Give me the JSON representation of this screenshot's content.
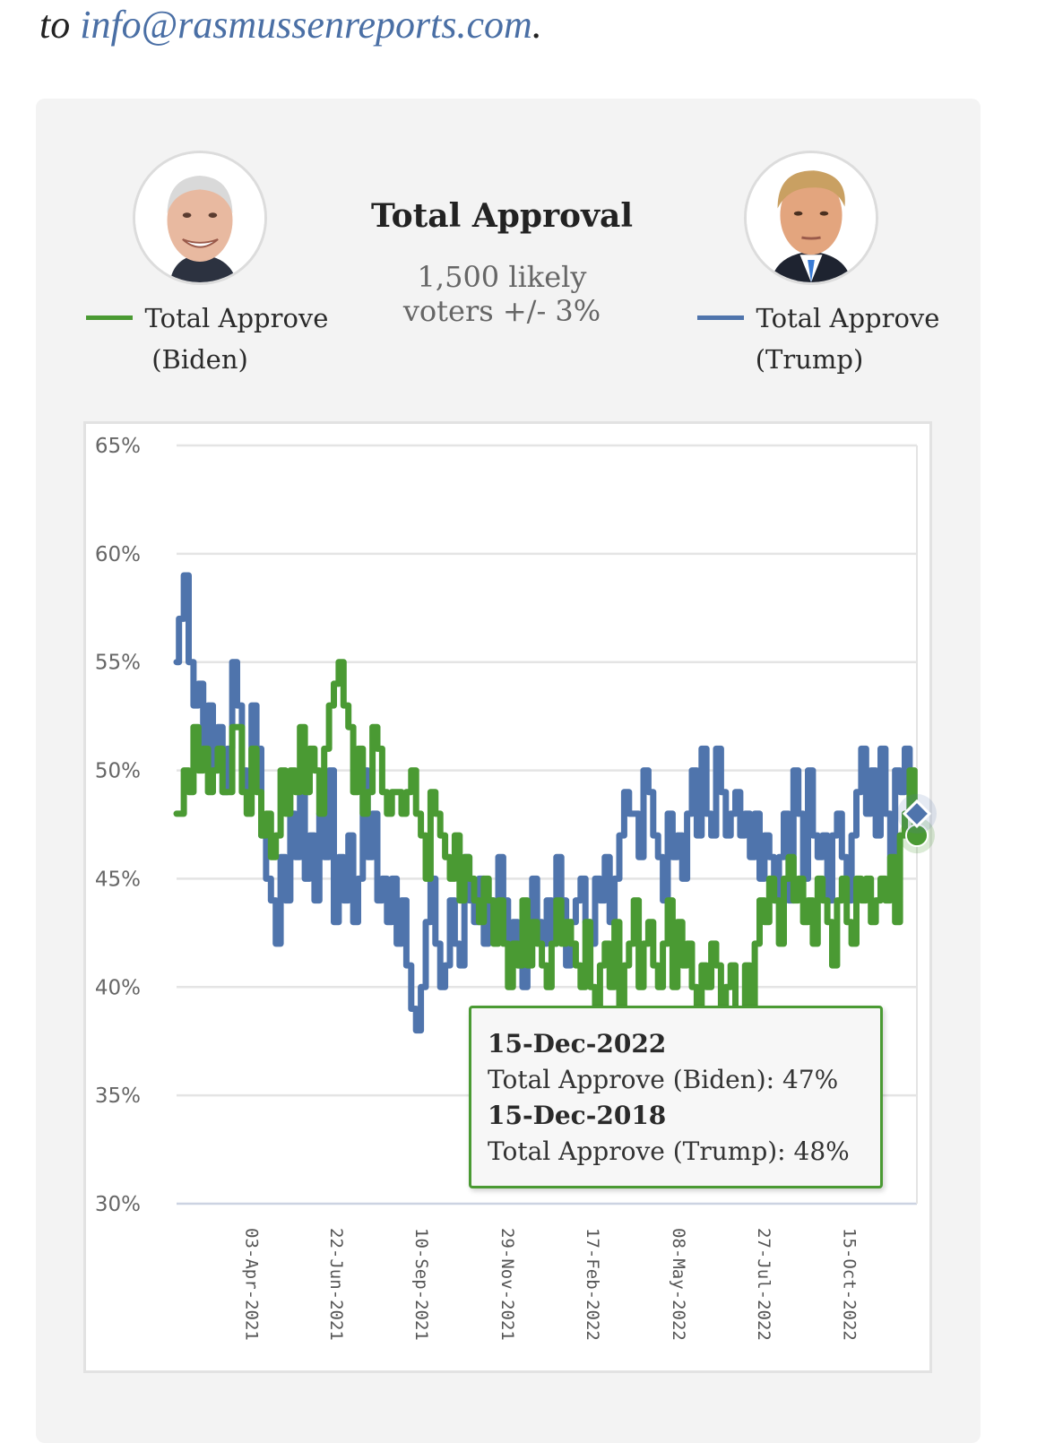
{
  "header": {
    "prefix": "to ",
    "email_link": "info@rasmussenreports.com",
    "suffix": "."
  },
  "chart_header": {
    "title": "Total Approval",
    "subtitle_line1": "1,500 likely",
    "subtitle_line2": "voters +/- 3%"
  },
  "legend": {
    "biden": {
      "line1": "Total Approve",
      "line2": "(Biden)",
      "color": "#4a9a33",
      "avatar": "biden-portrait"
    },
    "trump": {
      "line1": "Total Approve",
      "line2": "(Trump)",
      "color": "#4f74ac",
      "avatar": "trump-portrait"
    }
  },
  "tooltip": {
    "date1": "15-Dec-2022",
    "line1": "Total Approve (Biden): 47%",
    "date2": "15-Dec-2018",
    "line2": "Total Approve (Trump): 48%"
  },
  "chart_data": {
    "type": "line",
    "title": "Total Approval",
    "subtitle": "1,500 likely voters +/- 3%",
    "xlabel": "",
    "ylabel": "",
    "ylim": [
      30,
      65
    ],
    "yticks": [
      "65%",
      "60%",
      "55%",
      "50%",
      "45%",
      "40%",
      "35%",
      "30%"
    ],
    "ytick_values": [
      65,
      60,
      55,
      50,
      45,
      40,
      35,
      30
    ],
    "xticks": [
      "03-Apr-2021",
      "22-Jun-2021",
      "10-Sep-2021",
      "29-Nov-2021",
      "17-Feb-2022",
      "08-May-2022",
      "27-Jul-2022",
      "15-Oct-2022"
    ],
    "xtick_positions": [
      0.102,
      0.217,
      0.332,
      0.448,
      0.563,
      0.679,
      0.794,
      0.91
    ],
    "grid": true,
    "legend": "top",
    "x_range": [
      "22-Jan-2021",
      "15-Dec-2022"
    ],
    "series": [
      {
        "name": "Total Approve (Biden)",
        "color": "#4a9a33",
        "values": [
          48,
          48,
          50,
          49,
          52,
          50,
          51,
          49,
          50,
          51,
          49,
          49,
          52,
          52,
          49,
          48,
          51,
          49,
          47,
          48,
          46,
          47,
          50,
          48,
          50,
          49,
          52,
          49,
          51,
          50,
          48,
          51,
          53,
          54,
          55,
          53,
          52,
          49,
          51,
          48,
          49,
          52,
          51,
          49,
          48,
          49,
          49,
          48,
          49,
          50,
          48,
          47,
          45,
          49,
          48,
          47,
          46,
          45,
          47,
          44,
          46,
          45,
          44,
          43,
          45,
          44,
          42,
          44,
          42,
          40,
          42,
          41,
          44,
          41,
          43,
          42,
          41,
          40,
          42,
          44,
          42,
          43,
          42,
          41,
          40,
          43,
          40,
          38,
          41,
          42,
          40,
          43,
          38,
          41,
          42,
          44,
          40,
          42,
          43,
          41,
          40,
          42,
          44,
          40,
          43,
          41,
          42,
          40,
          39,
          41,
          40,
          42,
          41,
          38,
          40,
          41,
          39,
          37,
          41,
          38,
          42,
          44,
          43,
          45,
          44,
          42,
          45,
          46,
          44,
          45,
          43,
          44,
          42,
          45,
          44,
          43,
          41,
          44,
          45,
          43,
          42,
          45,
          44,
          45,
          43,
          44,
          45,
          44,
          46,
          43,
          47,
          48,
          50,
          47
        ]
      },
      {
        "name": "Total Approve (Trump)",
        "color": "#4f74ac",
        "values": [
          55,
          57,
          59,
          55,
          53,
          54,
          51,
          53,
          50,
          52,
          49,
          51,
          55,
          53,
          50,
          49,
          53,
          51,
          47,
          45,
          44,
          42,
          46,
          44,
          48,
          46,
          49,
          45,
          47,
          44,
          48,
          46,
          50,
          43,
          46,
          44,
          47,
          43,
          45,
          50,
          46,
          48,
          44,
          45,
          43,
          45,
          42,
          44,
          41,
          39,
          38,
          40,
          43,
          45,
          42,
          40,
          41,
          44,
          42,
          41,
          46,
          44,
          43,
          45,
          42,
          44,
          43,
          46,
          44,
          42,
          43,
          41,
          40,
          42,
          45,
          43,
          42,
          44,
          42,
          46,
          44,
          41,
          43,
          44,
          45,
          43,
          42,
          45,
          44,
          46,
          43,
          45,
          47,
          49,
          48,
          48,
          46,
          50,
          49,
          47,
          46,
          44,
          48,
          46,
          47,
          45,
          48,
          50,
          47,
          51,
          48,
          47,
          51,
          49,
          47,
          48,
          49,
          47,
          48,
          46,
          48,
          45,
          47,
          46,
          44,
          46,
          48,
          44,
          50,
          48,
          45,
          50,
          47,
          46,
          47,
          44,
          47,
          48,
          46,
          44,
          47,
          49,
          51,
          48,
          50,
          47,
          51,
          48,
          45,
          50,
          49,
          51,
          48,
          48
        ]
      }
    ],
    "highlight": {
      "index": "last",
      "biden_value": 47,
      "trump_value": 48
    }
  }
}
